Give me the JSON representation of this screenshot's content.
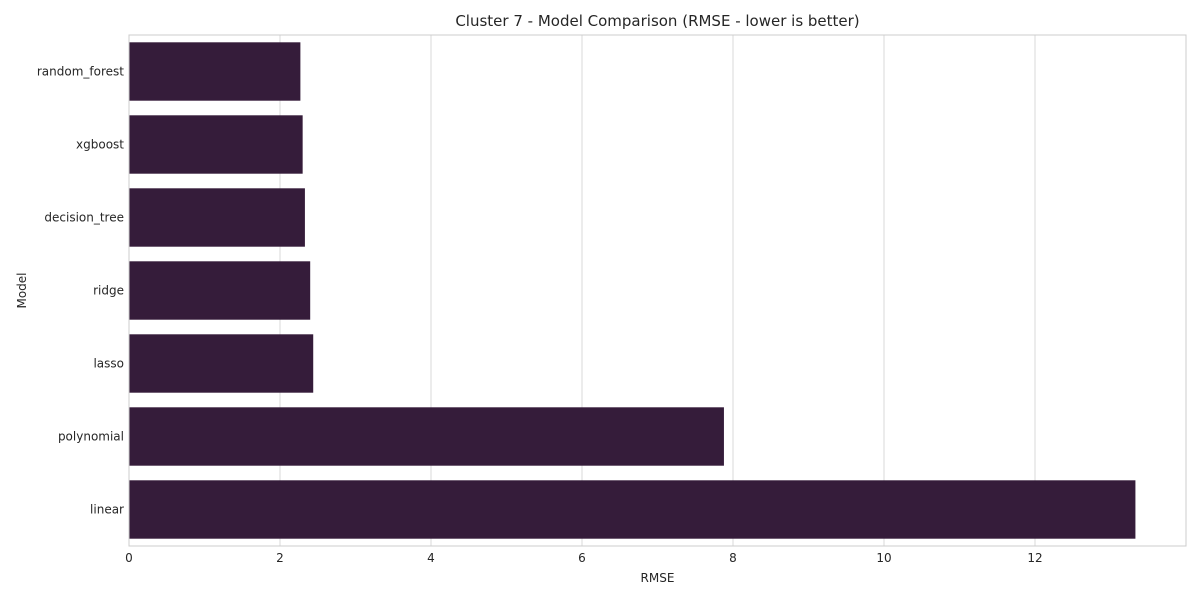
{
  "chart_data": {
    "type": "bar",
    "orientation": "horizontal",
    "title": "Cluster 7 - Model Comparison (RMSE - lower is better)",
    "xlabel": "RMSE",
    "ylabel": "Model",
    "categories": [
      "random_forest",
      "xgboost",
      "decision_tree",
      "ridge",
      "lasso",
      "polynomial",
      "linear"
    ],
    "values": [
      2.27,
      2.3,
      2.33,
      2.4,
      2.44,
      7.88,
      13.33
    ],
    "xlim": [
      0,
      14
    ],
    "xticks": [
      0,
      2,
      4,
      6,
      8,
      10,
      12
    ],
    "grid": true,
    "bar_color": "#351c3a"
  }
}
